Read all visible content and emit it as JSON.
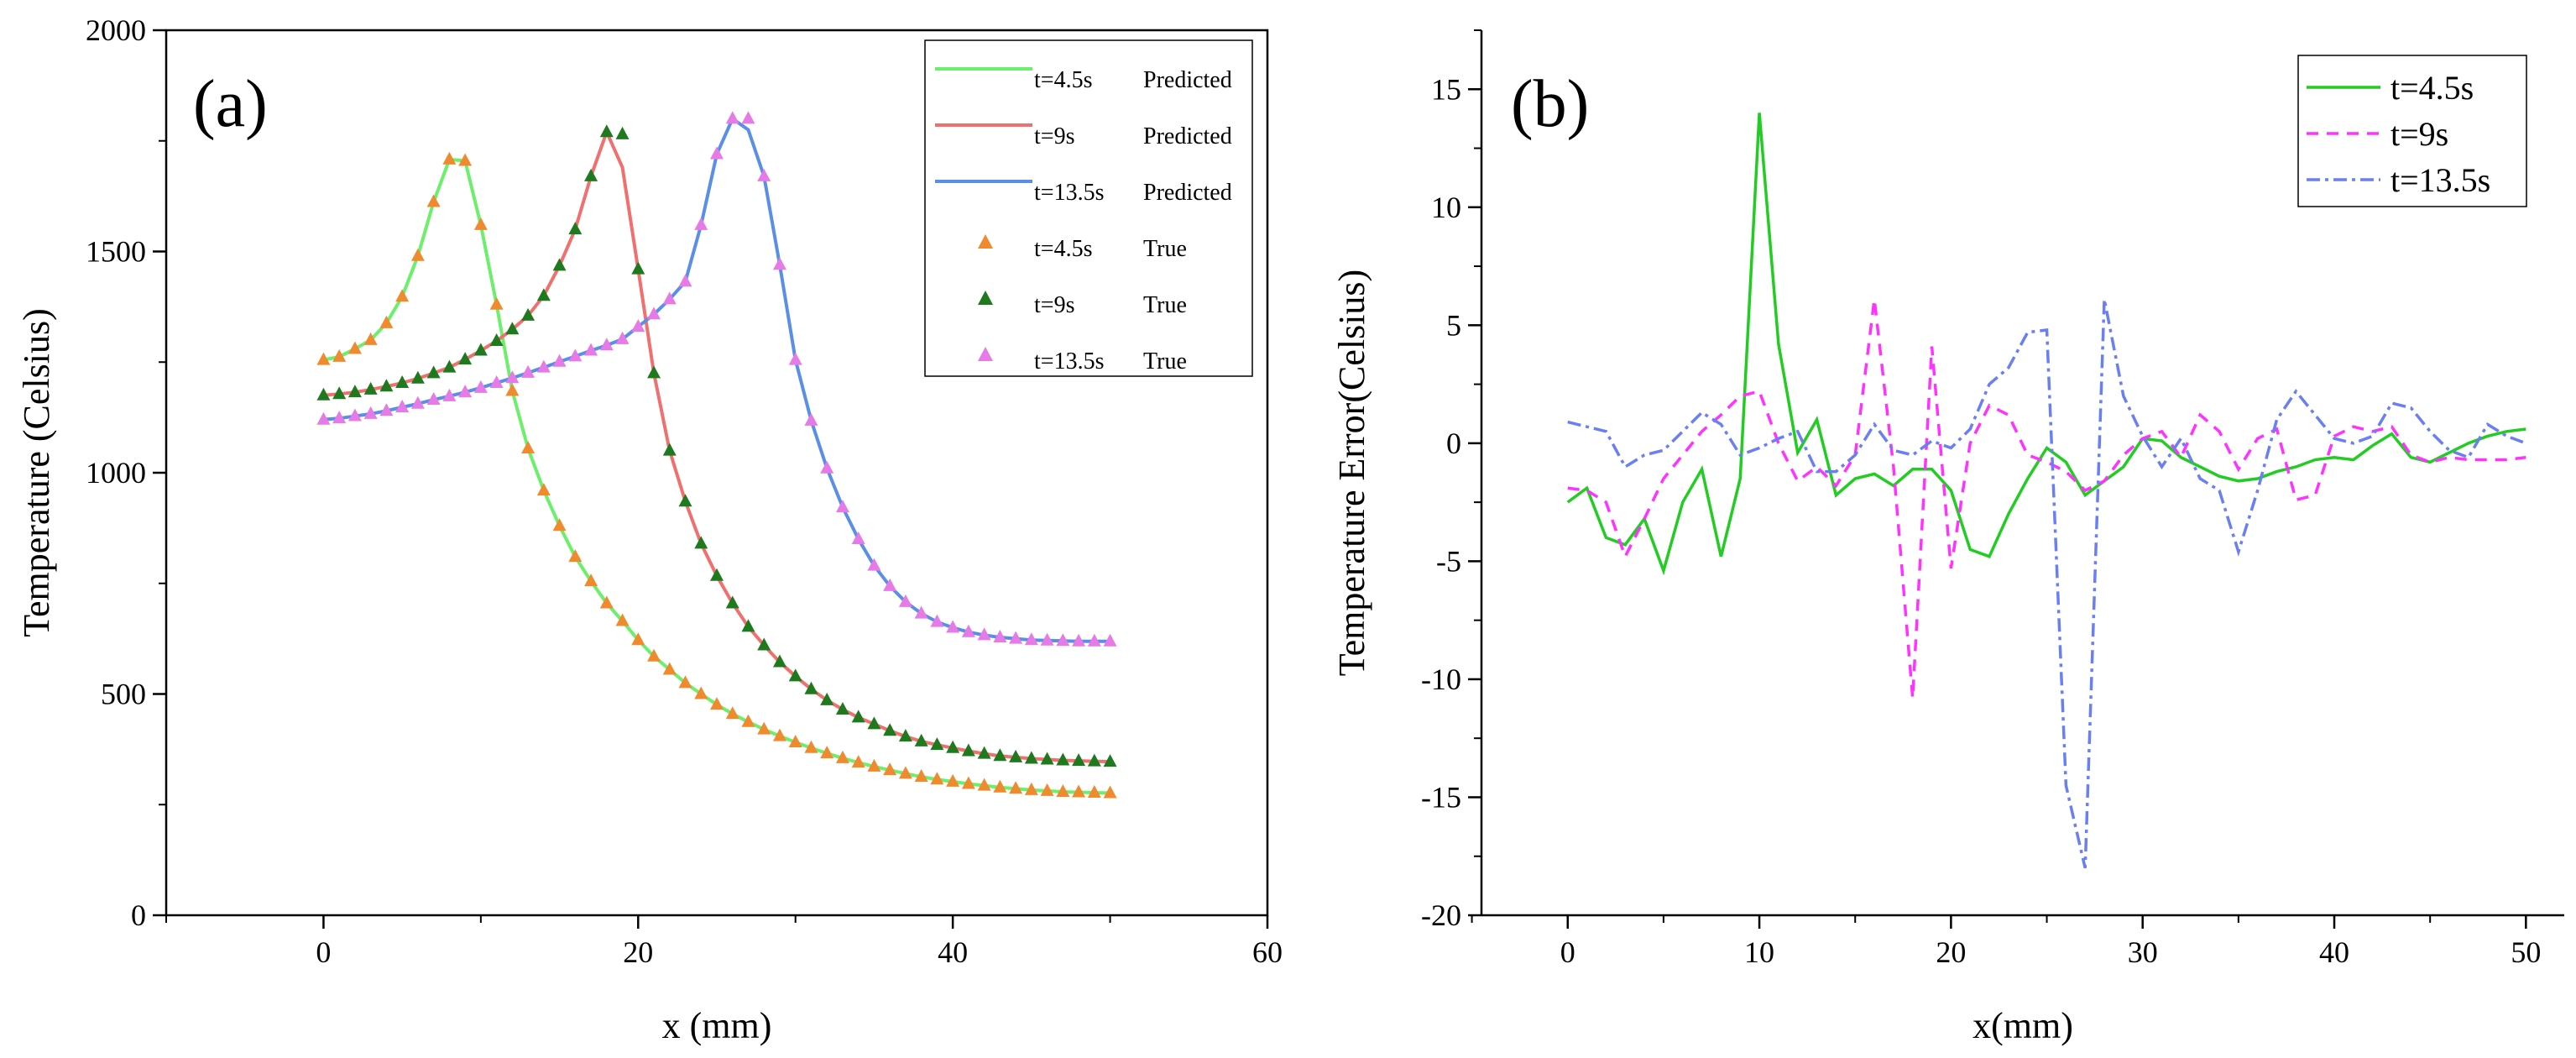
{
  "chart_data": [
    {
      "panel_label": "(a)",
      "type": "line",
      "xlabel": "x (mm)",
      "ylabel": "Temperature (Celsius)",
      "xlim": [
        -10,
        60
      ],
      "ylim": [
        0,
        2000
      ],
      "xticks": [
        0,
        20,
        40,
        60
      ],
      "yticks": [
        0,
        500,
        1000,
        1500,
        2000
      ],
      "grid": false,
      "legend_position": "top-right",
      "x": [
        0,
        1,
        2,
        3,
        4,
        5,
        6,
        7,
        8,
        9,
        10,
        11,
        12,
        13,
        14,
        15,
        16,
        17,
        18,
        19,
        20,
        21,
        22,
        23,
        24,
        25,
        26,
        27,
        28,
        29,
        30,
        31,
        32,
        33,
        34,
        35,
        36,
        37,
        38,
        39,
        40,
        41,
        42,
        43,
        44,
        45,
        46,
        47,
        48,
        49,
        50
      ],
      "series": [
        {
          "name": "t=4.5s",
          "kind": "Predicted",
          "label": "Predicted",
          "color": "#6cf06c",
          "values": [
            1255,
            1262,
            1280,
            1300,
            1338,
            1398,
            1490,
            1612,
            1708,
            1705,
            1560,
            1380,
            1185,
            1055,
            960,
            880,
            810,
            755,
            705,
            665,
            622,
            585,
            555,
            525,
            500,
            476,
            455,
            437,
            420,
            405,
            391,
            378,
            366,
            355,
            345,
            336,
            328,
            320,
            313,
            307,
            302,
            297,
            293,
            289,
            286,
            283,
            281,
            279,
            278,
            277,
            276
          ]
        },
        {
          "name": "t=9s",
          "kind": "Predicted",
          "label": "Predicted",
          "color": "#f07070",
          "values": [
            1175,
            1178,
            1182,
            1188,
            1195,
            1203,
            1213,
            1225,
            1238,
            1256,
            1276,
            1298,
            1324,
            1355,
            1400,
            1468,
            1550,
            1670,
            1770,
            1690,
            1460,
            1225,
            1050,
            935,
            840,
            767,
            705,
            652,
            610,
            572,
            540,
            511,
            486,
            465,
            447,
            432,
            417,
            404,
            393,
            385,
            378,
            371,
            365,
            360,
            357,
            354,
            352,
            350,
            349,
            348,
            347
          ]
        },
        {
          "name": "t=13.5s",
          "kind": "Predicted",
          "label": "Predicted",
          "color": "#5a8fe6",
          "values": [
            1120,
            1123,
            1128,
            1133,
            1140,
            1148,
            1156,
            1165,
            1173,
            1182,
            1192,
            1203,
            1214,
            1226,
            1238,
            1251,
            1263,
            1276,
            1288,
            1302,
            1330,
            1358,
            1392,
            1432,
            1560,
            1720,
            1800,
            1775,
            1670,
            1470,
            1255,
            1118,
            1010,
            922,
            850,
            790,
            744,
            708,
            682,
            663,
            650,
            640,
            633,
            628,
            625,
            622,
            621,
            620,
            619,
            619,
            619
          ]
        },
        {
          "name": "t=4.5s",
          "kind": "True",
          "label": "True",
          "color": "#f08a2e",
          "values": [
            1255,
            1262,
            1280,
            1300,
            1338,
            1398,
            1490,
            1612,
            1708,
            1705,
            1560,
            1380,
            1185,
            1055,
            960,
            880,
            810,
            755,
            705,
            665,
            622,
            585,
            555,
            525,
            500,
            476,
            455,
            437,
            420,
            405,
            391,
            378,
            366,
            355,
            345,
            336,
            328,
            320,
            313,
            307,
            302,
            297,
            293,
            289,
            286,
            283,
            281,
            279,
            278,
            277,
            276
          ]
        },
        {
          "name": "t=9s",
          "kind": "True",
          "label": "True",
          "color": "#1f7a1f",
          "values": [
            1175,
            1178,
            1182,
            1188,
            1195,
            1203,
            1213,
            1225,
            1238,
            1256,
            1276,
            1298,
            1324,
            1355,
            1400,
            1468,
            1550,
            1670,
            1770,
            1765,
            1460,
            1225,
            1050,
            935,
            840,
            767,
            705,
            652,
            610,
            572,
            540,
            511,
            486,
            465,
            447,
            432,
            417,
            404,
            393,
            385,
            378,
            371,
            365,
            360,
            357,
            354,
            352,
            350,
            349,
            348,
            347
          ]
        },
        {
          "name": "t=13.5s",
          "kind": "True",
          "label": "True",
          "color": "#e67ae6",
          "values": [
            1120,
            1123,
            1128,
            1133,
            1140,
            1148,
            1156,
            1165,
            1173,
            1182,
            1192,
            1203,
            1214,
            1226,
            1238,
            1251,
            1263,
            1276,
            1288,
            1302,
            1330,
            1358,
            1392,
            1432,
            1560,
            1720,
            1800,
            1800,
            1670,
            1470,
            1255,
            1118,
            1010,
            922,
            850,
            790,
            744,
            708,
            682,
            663,
            650,
            640,
            633,
            628,
            625,
            622,
            621,
            620,
            619,
            619,
            619
          ]
        }
      ]
    },
    {
      "panel_label": "(b)",
      "type": "line",
      "xlabel": "x(mm)",
      "ylabel": "Temperature Error(Celsius)",
      "xlim": [
        -4.5,
        52
      ],
      "ylim": [
        -20,
        17.5
      ],
      "xticks": [
        0,
        10,
        20,
        30,
        40,
        50
      ],
      "yticks": [
        -20,
        -15,
        -10,
        -5,
        0,
        5,
        10,
        15
      ],
      "grid": false,
      "legend_position": "top-right",
      "x": [
        0,
        1,
        2,
        3,
        4,
        5,
        6,
        7,
        8,
        9,
        10,
        11,
        12,
        13,
        14,
        15,
        16,
        17,
        18,
        19,
        20,
        21,
        22,
        23,
        24,
        25,
        26,
        27,
        28,
        29,
        30,
        31,
        32,
        33,
        34,
        35,
        36,
        37,
        38,
        39,
        40,
        41,
        42,
        43,
        44,
        45,
        46,
        47,
        48,
        49,
        50
      ],
      "series": [
        {
          "name": "t=4.5s",
          "color": "#22cc22",
          "dash": "",
          "values": [
            -2.5,
            -1.9,
            -4.0,
            -4.3,
            -3.2,
            -5.4,
            -2.5,
            -1.1,
            -4.8,
            -1.5,
            14.0,
            4.2,
            -0.4,
            1.0,
            -2.2,
            -1.5,
            -1.3,
            -1.8,
            -1.1,
            -1.1,
            -2.0,
            -4.5,
            -4.8,
            -3.0,
            -1.5,
            -0.2,
            -0.8,
            -2.2,
            -1.6,
            -1.0,
            0.2,
            0.1,
            -0.6,
            -1.0,
            -1.4,
            -1.6,
            -1.5,
            -1.2,
            -1.0,
            -0.7,
            -0.6,
            -0.7,
            -0.1,
            0.4,
            -0.6,
            -0.8,
            -0.4,
            0.0,
            0.3,
            0.5,
            0.6
          ]
        },
        {
          "name": "t=9s",
          "color": "#ff33ff",
          "dash": "14,10",
          "values": [
            -1.9,
            -2.0,
            -2.5,
            -4.8,
            -3.2,
            -1.5,
            -0.5,
            0.5,
            1.2,
            2.0,
            2.2,
            0.0,
            -1.6,
            -1.0,
            -1.8,
            -0.5,
            6.1,
            -1.0,
            -10.8,
            4.1,
            -5.3,
            0.0,
            1.6,
            1.2,
            -0.5,
            -0.8,
            -1.2,
            -2.0,
            -1.6,
            -0.5,
            0.2,
            0.5,
            -0.6,
            1.2,
            0.5,
            -1.1,
            0.2,
            0.6,
            -2.4,
            -2.2,
            0.3,
            0.7,
            0.5,
            0.7,
            -0.5,
            -0.8,
            -0.6,
            -0.7,
            -0.7,
            -0.7,
            -0.6
          ]
        },
        {
          "name": "t=13.5s",
          "color": "#6a7ff2",
          "dash": "16,6,4,6",
          "values": [
            0.9,
            0.7,
            0.5,
            -1.0,
            -0.5,
            -0.3,
            0.5,
            1.3,
            0.8,
            -0.5,
            -0.2,
            0.2,
            0.5,
            -1.2,
            -1.2,
            -0.5,
            0.8,
            -0.3,
            -0.5,
            0.1,
            -0.2,
            0.6,
            2.5,
            3.2,
            4.7,
            4.8,
            -14.5,
            -18.0,
            6.1,
            2.0,
            0.3,
            -1.0,
            0.2,
            -1.5,
            -2.0,
            -4.6,
            -2.0,
            1.0,
            2.2,
            1.2,
            0.2,
            0.0,
            0.3,
            1.7,
            1.5,
            0.5,
            -0.3,
            -0.6,
            0.8,
            0.3,
            0.0
          ]
        }
      ]
    }
  ]
}
